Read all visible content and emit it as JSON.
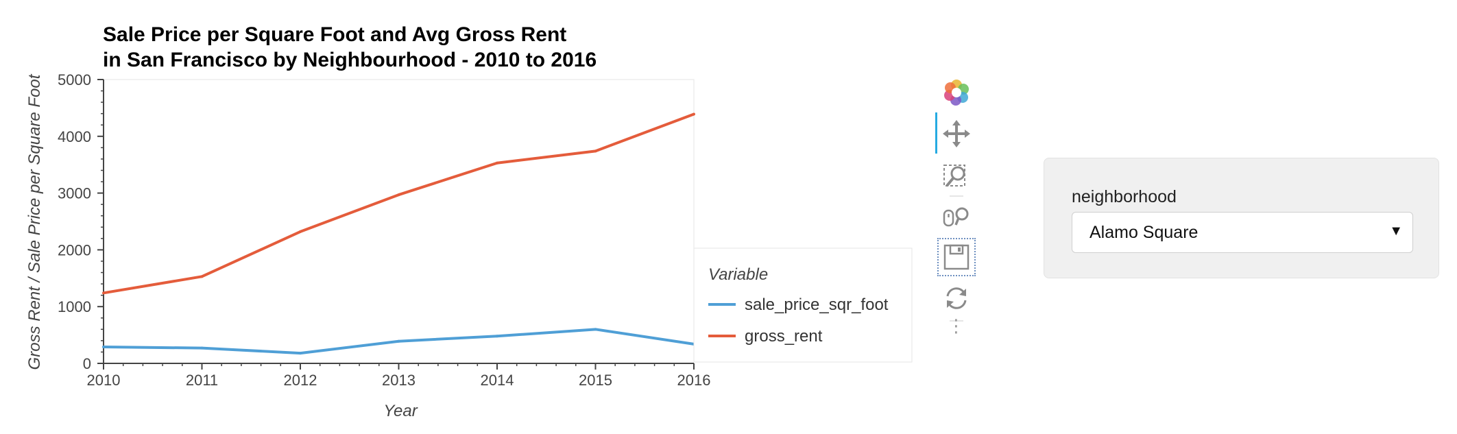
{
  "chart_data": {
    "type": "line",
    "title_lines": [
      "Sale Price per Square Foot and Avg Gross Rent",
      "in San Francisco by Neighbourhood - 2010 to 2016"
    ],
    "xlabel": "Year",
    "ylabel": "Gross Rent / Sale Price per Square Foot",
    "x": [
      2010,
      2011,
      2012,
      2013,
      2014,
      2015,
      2016
    ],
    "xlim": [
      2010,
      2016
    ],
    "ylim": [
      0,
      5000
    ],
    "xticks": [
      "2010",
      "2011",
      "2012",
      "2013",
      "2014",
      "2015",
      "2016"
    ],
    "yticks": [
      "0",
      "1000",
      "2000",
      "3000",
      "4000",
      "5000"
    ],
    "grid": false,
    "legend": {
      "title": "Variable",
      "placement": "right"
    },
    "series": [
      {
        "name": "sale_price_sqr_foot",
        "color": "#4f9fd6",
        "values": [
          290,
          270,
          180,
          390,
          480,
          600,
          340
        ]
      },
      {
        "name": "gross_rent",
        "color": "#e45c3b",
        "values": [
          1240,
          1530,
          2320,
          2970,
          3530,
          3740,
          4390
        ]
      }
    ]
  },
  "toolbar": {
    "tools": [
      "bokeh-logo-icon",
      "pan-icon",
      "box-zoom-icon",
      "wheel-zoom-icon",
      "save-icon",
      "reset-icon"
    ],
    "more": "⋮"
  },
  "widget": {
    "label": "neighborhood",
    "selected": "Alamo Square",
    "arrow": "▼"
  }
}
